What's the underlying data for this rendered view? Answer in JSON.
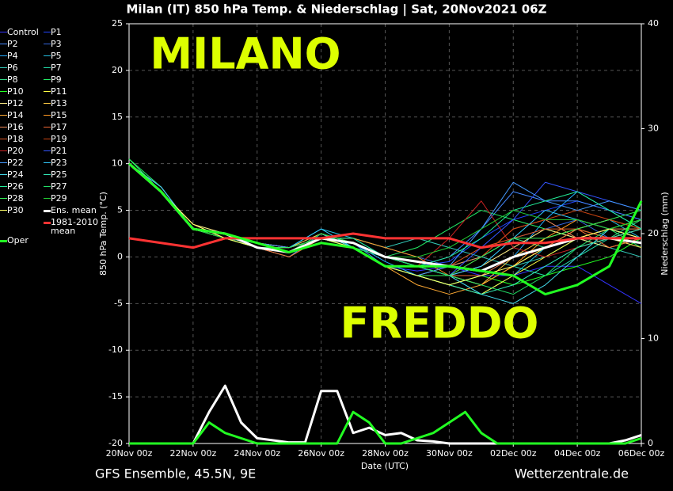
{
  "chart_data": {
    "type": "line",
    "title": "Milan  (IT)  850 hPa Temp. & Niederschlag | Sat, 20Nov2021 06Z",
    "ylabel": "850 hPa Temp. (°C)",
    "y2label": "Niederschlag (mm)",
    "xlabel": "Date (UTC)",
    "annotations": [
      "MILANO",
      "FREDDO"
    ],
    "annotation_color": "#ddff00",
    "footer_left": "GFS Ensemble, 45.5N, 9E",
    "footer_right": "Wetterzentrale.de",
    "grid": true,
    "xlim": [
      0,
      16
    ],
    "xticks": [
      {
        "value": 0,
        "label": "20Nov 00z"
      },
      {
        "value": 2,
        "label": "22Nov 00z"
      },
      {
        "value": 4,
        "label": "24Nov 00z"
      },
      {
        "value": 6,
        "label": "26Nov 00z"
      },
      {
        "value": 8,
        "label": "28Nov 00z"
      },
      {
        "value": 10,
        "label": "30Nov 00z"
      },
      {
        "value": 12,
        "label": "02Dec 00z"
      },
      {
        "value": 14,
        "label": "04Dec 00z"
      },
      {
        "value": 16,
        "label": "06Dec 00z"
      }
    ],
    "ylim": [
      -20,
      25
    ],
    "yticks": [
      -20,
      -15,
      -10,
      -5,
      0,
      5,
      10,
      15,
      20,
      25
    ],
    "y2lim": [
      0,
      40
    ],
    "y2ticks": [
      0,
      10,
      20,
      30,
      40
    ],
    "x": [
      0,
      1,
      2,
      3,
      4,
      5,
      6,
      7,
      8,
      9,
      10,
      11,
      12,
      13,
      14,
      15,
      16
    ],
    "precip_x": [
      0,
      0.5,
      1,
      1.5,
      2,
      2.5,
      3,
      3.5,
      4,
      4.5,
      5,
      5.5,
      6,
      6.5,
      7,
      7.5,
      8,
      8.5,
      9,
      9.5,
      10,
      10.5,
      11,
      11.5,
      12,
      12.5,
      13,
      13.5,
      14,
      14.5,
      15,
      15.5,
      16
    ],
    "series": [
      {
        "name": "Control",
        "color": "#3333ff",
        "width": 1,
        "values": [
          10,
          7.5,
          3,
          2.5,
          1.5,
          0.5,
          1.5,
          1,
          -1,
          -1.5,
          -1,
          -2,
          -2,
          -1,
          -1,
          -3,
          -5
        ]
      },
      {
        "name": "P1",
        "color": "#2244ff",
        "width": 1,
        "values": [
          10,
          7,
          3,
          2.5,
          1,
          0.5,
          2,
          1.5,
          0,
          -1,
          -0.5,
          2,
          4,
          5,
          6,
          5,
          4
        ]
      },
      {
        "name": "P2",
        "color": "#4488ff",
        "width": 1,
        "values": [
          10,
          7,
          3.5,
          2,
          1,
          0.5,
          2.5,
          1,
          0,
          -1,
          0,
          3,
          7,
          6,
          6,
          5,
          4
        ]
      },
      {
        "name": "P3",
        "color": "#3366dd",
        "width": 1,
        "values": [
          10.5,
          7,
          3,
          2,
          1.5,
          1,
          2,
          2,
          1,
          0,
          -1,
          0,
          2,
          3,
          4,
          2,
          2
        ]
      },
      {
        "name": "P4",
        "color": "#22aaff",
        "width": 1,
        "values": [
          10,
          7.5,
          3,
          2.5,
          1,
          0,
          2.5,
          1.5,
          -0.5,
          -2,
          -3,
          -2,
          0,
          4,
          7,
          5,
          3
        ]
      },
      {
        "name": "P5",
        "color": "#22bbdd",
        "width": 1,
        "values": [
          10,
          7,
          3,
          2.5,
          1.5,
          1,
          3,
          2,
          0,
          -1,
          -2,
          -4,
          -2,
          1,
          3,
          4,
          2
        ]
      },
      {
        "name": "P6",
        "color": "#33ccbb",
        "width": 1,
        "values": [
          10,
          7,
          3.5,
          2,
          1,
          1,
          2,
          2,
          1,
          2,
          1,
          0,
          -1,
          0,
          2,
          1,
          0
        ]
      },
      {
        "name": "P7",
        "color": "#22ddaa",
        "width": 1,
        "values": [
          10,
          7,
          3,
          2,
          1,
          0.5,
          2,
          1,
          0,
          -1,
          -2,
          -3,
          -1,
          -2,
          0,
          2,
          1
        ]
      },
      {
        "name": "P8",
        "color": "#33dd88",
        "width": 1,
        "values": [
          10,
          7,
          3,
          2.5,
          1.5,
          1,
          2.5,
          1,
          -1,
          -2,
          -1,
          0,
          2,
          1,
          3,
          2,
          4
        ]
      },
      {
        "name": "P9",
        "color": "#22ee66",
        "width": 1,
        "values": [
          10.5,
          7.5,
          3,
          2,
          1,
          0.5,
          2,
          1.5,
          0,
          1,
          3,
          5,
          4,
          3,
          2,
          3,
          1
        ]
      },
      {
        "name": "P10",
        "color": "#22ff22",
        "width": 1,
        "values": [
          10,
          7,
          3,
          2.5,
          1,
          0.5,
          2.5,
          1,
          -1,
          -2,
          -3,
          -2,
          -3,
          -2,
          -1,
          0,
          2
        ]
      },
      {
        "name": "P11",
        "color": "#ffff44",
        "width": 1,
        "values": [
          10,
          7,
          3,
          2,
          1,
          1,
          2,
          1,
          -1,
          -2,
          -3,
          -4,
          -2,
          0,
          2,
          3,
          4
        ]
      },
      {
        "name": "P12",
        "color": "#ffee88",
        "width": 1,
        "values": [
          10,
          7,
          3.5,
          2.5,
          1,
          0,
          2,
          1,
          0,
          -1,
          -2,
          -1,
          1,
          3,
          2,
          1,
          2
        ]
      },
      {
        "name": "P13",
        "color": "#ffcc44",
        "width": 1,
        "values": [
          10,
          7,
          3,
          2,
          1.5,
          1,
          2.5,
          1.5,
          0,
          -1,
          -2,
          -3,
          0,
          2,
          3,
          2,
          1
        ]
      },
      {
        "name": "P14",
        "color": "#ffaa33",
        "width": 1,
        "values": [
          10,
          7.5,
          3,
          2,
          1,
          0.5,
          2,
          1,
          -1,
          -3,
          -4,
          -3,
          -1,
          1,
          3,
          4,
          3
        ]
      },
      {
        "name": "P15",
        "color": "#ff9922",
        "width": 1,
        "values": [
          10,
          7,
          3,
          2.5,
          1,
          0.5,
          2,
          2,
          1,
          0,
          -2,
          -3,
          -1,
          2,
          4,
          3,
          2
        ]
      },
      {
        "name": "P16",
        "color": "#ee8855",
        "width": 1,
        "values": [
          10,
          7,
          3,
          2,
          1.5,
          1,
          2,
          1,
          0,
          -1,
          -1,
          0,
          3,
          4,
          2,
          3,
          3
        ]
      },
      {
        "name": "P17",
        "color": "#ee6633",
        "width": 1,
        "values": [
          10,
          7,
          3.5,
          2,
          1,
          0,
          2,
          1.5,
          0,
          -1,
          -2,
          -2,
          0,
          1,
          3,
          1,
          2
        ]
      },
      {
        "name": "P18",
        "color": "#dd5522",
        "width": 1,
        "values": [
          10,
          7,
          3,
          2.5,
          1,
          0.5,
          2.5,
          1,
          -1,
          -2,
          -1,
          1,
          2,
          3,
          3,
          2,
          3
        ]
      },
      {
        "name": "P19",
        "color": "#cc4411",
        "width": 1,
        "values": [
          10,
          7,
          3,
          2,
          1,
          1,
          2,
          1,
          0,
          -1,
          -2,
          0,
          3,
          4,
          5,
          4,
          3
        ]
      },
      {
        "name": "P20",
        "color": "#cc2222",
        "width": 1,
        "values": [
          10,
          7,
          3,
          2,
          1,
          1,
          2,
          1,
          0,
          -1,
          2,
          6,
          1,
          0,
          1,
          2,
          3
        ]
      },
      {
        "name": "P21",
        "color": "#3355ff",
        "width": 1,
        "values": [
          10,
          7,
          3,
          2.5,
          1,
          0.5,
          2,
          1,
          0,
          -1,
          -2,
          1,
          4,
          8,
          7,
          6,
          5
        ]
      },
      {
        "name": "P22",
        "color": "#4499ff",
        "width": 1,
        "values": [
          10,
          7,
          3,
          2,
          1.5,
          1,
          2,
          1.5,
          -1,
          -2,
          -1,
          3,
          8,
          6,
          5,
          6,
          5
        ]
      },
      {
        "name": "P23",
        "color": "#33ccff",
        "width": 1,
        "values": [
          10,
          7.5,
          3,
          2,
          1,
          1,
          3,
          1,
          0,
          -1,
          -2,
          -1,
          2,
          5,
          4,
          3,
          2
        ]
      },
      {
        "name": "P24",
        "color": "#44ddee",
        "width": 1,
        "values": [
          10,
          7,
          3,
          2,
          1,
          0.5,
          2.5,
          1,
          0,
          -1,
          -2,
          -4,
          -5,
          -3,
          0,
          3,
          2
        ]
      },
      {
        "name": "P25",
        "color": "#33eebb",
        "width": 1,
        "values": [
          10,
          7,
          3,
          2.5,
          1,
          0.5,
          2,
          1,
          -1,
          -2,
          -3,
          -4,
          -3,
          -1,
          1,
          2,
          3
        ]
      },
      {
        "name": "P26",
        "color": "#22ee99",
        "width": 1,
        "values": [
          10,
          7,
          3,
          2,
          1.5,
          0.5,
          2,
          2,
          0,
          -1,
          0,
          2,
          5,
          6,
          7,
          5,
          3
        ]
      },
      {
        "name": "P27",
        "color": "#22dd66",
        "width": 1,
        "values": [
          10,
          7,
          3,
          2,
          1,
          0.5,
          2,
          1,
          0,
          -1,
          -2,
          -3,
          -4,
          -2,
          1,
          3,
          4
        ]
      },
      {
        "name": "P28",
        "color": "#33ee55",
        "width": 1,
        "values": [
          10.5,
          7,
          3,
          2.5,
          1,
          1,
          2,
          1,
          -1,
          -2,
          -2,
          0,
          2,
          2,
          3,
          4,
          5
        ]
      },
      {
        "name": "P29",
        "color": "#22cc33",
        "width": 1,
        "values": [
          10,
          7,
          3,
          2,
          1,
          0.5,
          2.5,
          1.5,
          0,
          0,
          1,
          3,
          5,
          4,
          4,
          3,
          4
        ]
      },
      {
        "name": "P30",
        "color": "#ffff66",
        "width": 1,
        "values": [
          10,
          7,
          3.5,
          2,
          1,
          0.5,
          2,
          1,
          -1,
          -2,
          -3,
          -2,
          -1,
          1,
          2,
          3,
          2
        ]
      },
      {
        "name": "Ens. mean",
        "color": "#ffffff",
        "width": 3,
        "values": [
          10,
          7,
          3,
          2.5,
          1,
          0.5,
          2,
          1.5,
          0,
          -0.5,
          -1,
          -1.5,
          0,
          1,
          2,
          2,
          1.5
        ],
        "precip": [
          0,
          0,
          0,
          0,
          0,
          3,
          5.5,
          2,
          0.5,
          0.3,
          0.1,
          0.1,
          5,
          5,
          1,
          1.5,
          0.8,
          1,
          0.3,
          0.2,
          0,
          0,
          0,
          0,
          0,
          0,
          0,
          0,
          0,
          0,
          0,
          0.3,
          0.8
        ]
      },
      {
        "name": "1981-2010 mean",
        "color": "#ff3333",
        "width": 3,
        "values": [
          2,
          1.5,
          1,
          2,
          2,
          2,
          2,
          2.5,
          2,
          2,
          2,
          1,
          1.5,
          1.5,
          2,
          2,
          2
        ]
      },
      {
        "name": "Oper",
        "color": "#22ff22",
        "width": 3,
        "values": [
          10,
          7,
          3,
          2.5,
          1.5,
          0.5,
          1.5,
          1,
          -1,
          -1,
          -1,
          -1.5,
          -2,
          -4,
          -3,
          -1,
          6
        ],
        "precip": [
          0,
          0,
          0,
          0,
          0,
          2,
          1,
          0.5,
          0,
          0,
          0,
          0,
          0,
          0,
          3,
          2,
          0,
          0,
          0.5,
          1,
          2,
          3,
          1,
          0,
          0,
          0,
          0,
          0,
          0,
          0,
          0,
          0,
          0.5
        ]
      }
    ]
  }
}
